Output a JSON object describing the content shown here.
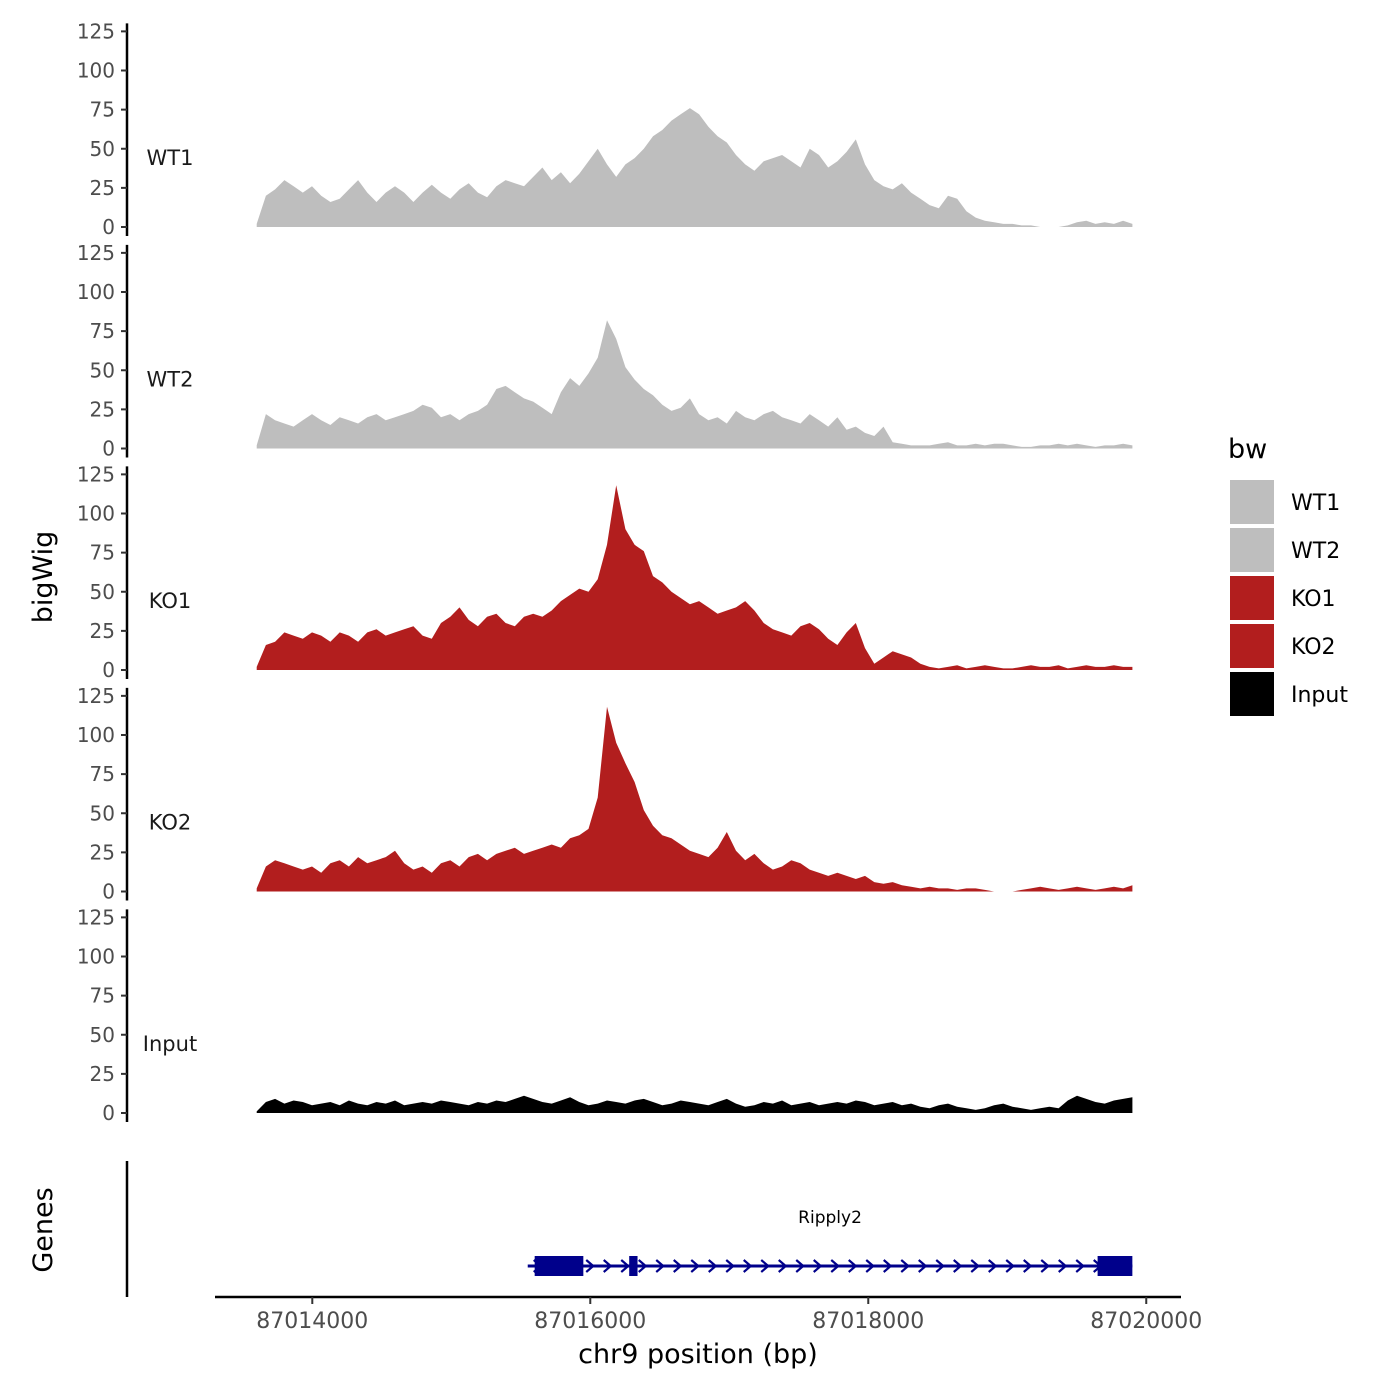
{
  "chart_data": {
    "type": "area",
    "ylabel": "bigWig",
    "xlabel": "chr9 position (bp)",
    "x_range": [
      87013600,
      87019900
    ],
    "xlim": [
      87013300,
      87020250
    ],
    "x_ticks": [
      87014000,
      87016000,
      87018000,
      87020000
    ],
    "x_tick_labels": [
      "87014000",
      "87016000",
      "87018000",
      "87020000"
    ],
    "ylim": [
      0,
      125
    ],
    "y_ticks": [
      0,
      25,
      50,
      75,
      100,
      125
    ],
    "y_tick_labels": [
      "0",
      "25",
      "50",
      "75",
      "100",
      "125"
    ],
    "legend": {
      "title": "bw",
      "position": "right",
      "items": [
        {
          "label": "WT1",
          "color": "#BEBEBE"
        },
        {
          "label": "WT2",
          "color": "#BEBEBE"
        },
        {
          "label": "KO1",
          "color": "#B21E1E"
        },
        {
          "label": "KO2",
          "color": "#B21E1E"
        },
        {
          "label": "Input",
          "color": "#000000"
        }
      ]
    },
    "series": [
      {
        "name": "WT1",
        "color": "#BEBEBE",
        "values": [
          2,
          20,
          24,
          30,
          26,
          22,
          26,
          20,
          16,
          18,
          24,
          30,
          22,
          16,
          22,
          26,
          22,
          16,
          22,
          27,
          22,
          18,
          24,
          28,
          22,
          19,
          26,
          30,
          28,
          26,
          32,
          38,
          30,
          35,
          28,
          34,
          42,
          50,
          40,
          32,
          40,
          44,
          50,
          58,
          62,
          68,
          72,
          76,
          72,
          64,
          58,
          54,
          46,
          40,
          36,
          42,
          44,
          46,
          42,
          38,
          50,
          46,
          38,
          42,
          48,
          56,
          40,
          30,
          26,
          24,
          28,
          22,
          18,
          14,
          12,
          20,
          18,
          10,
          6,
          4,
          3,
          2,
          2,
          1,
          1,
          0,
          0,
          0,
          1,
          3,
          4,
          2,
          3,
          2,
          4,
          2
        ]
      },
      {
        "name": "WT2",
        "color": "#BEBEBE",
        "values": [
          2,
          22,
          18,
          16,
          14,
          18,
          22,
          18,
          15,
          20,
          18,
          16,
          20,
          22,
          18,
          20,
          22,
          24,
          28,
          26,
          20,
          22,
          18,
          22,
          24,
          28,
          38,
          40,
          36,
          32,
          30,
          26,
          22,
          36,
          45,
          40,
          48,
          58,
          82,
          70,
          52,
          44,
          38,
          34,
          28,
          24,
          26,
          32,
          22,
          18,
          20,
          16,
          24,
          20,
          18,
          22,
          24,
          20,
          18,
          16,
          22,
          18,
          14,
          20,
          12,
          14,
          10,
          8,
          14,
          4,
          3,
          2,
          2,
          2,
          3,
          4,
          2,
          2,
          3,
          2,
          3,
          3,
          2,
          1,
          1,
          2,
          2,
          3,
          2,
          3,
          2,
          1,
          2,
          2,
          3,
          2
        ]
      },
      {
        "name": "KO1",
        "color": "#B21E1E",
        "values": [
          2,
          16,
          18,
          24,
          22,
          20,
          24,
          22,
          18,
          24,
          22,
          18,
          24,
          26,
          22,
          24,
          26,
          28,
          22,
          20,
          30,
          34,
          40,
          32,
          28,
          34,
          36,
          30,
          28,
          34,
          36,
          34,
          38,
          44,
          48,
          52,
          50,
          58,
          80,
          118,
          90,
          80,
          76,
          60,
          56,
          50,
          46,
          42,
          44,
          40,
          36,
          38,
          40,
          44,
          38,
          30,
          26,
          24,
          22,
          28,
          30,
          26,
          20,
          16,
          24,
          30,
          14,
          4,
          8,
          12,
          10,
          8,
          4,
          2,
          1,
          2,
          3,
          1,
          2,
          3,
          2,
          1,
          1,
          2,
          3,
          2,
          2,
          3,
          1,
          2,
          3,
          2,
          2,
          3,
          2,
          2
        ]
      },
      {
        "name": "KO2",
        "color": "#B21E1E",
        "values": [
          2,
          16,
          20,
          18,
          16,
          14,
          16,
          12,
          18,
          20,
          16,
          22,
          18,
          20,
          22,
          26,
          18,
          14,
          16,
          12,
          18,
          20,
          16,
          22,
          24,
          20,
          24,
          26,
          28,
          24,
          26,
          28,
          30,
          28,
          34,
          36,
          40,
          60,
          118,
          95,
          82,
          70,
          52,
          42,
          36,
          34,
          30,
          26,
          24,
          22,
          28,
          38,
          26,
          20,
          24,
          18,
          14,
          16,
          20,
          18,
          14,
          12,
          10,
          12,
          10,
          8,
          10,
          6,
          5,
          6,
          4,
          3,
          2,
          3,
          2,
          2,
          1,
          2,
          2,
          1,
          0,
          0,
          0,
          1,
          2,
          3,
          2,
          1,
          2,
          3,
          2,
          1,
          2,
          3,
          2,
          4
        ]
      },
      {
        "name": "Input",
        "color": "#000000",
        "values": [
          1,
          7,
          9,
          6,
          8,
          7,
          5,
          6,
          7,
          5,
          8,
          6,
          5,
          7,
          6,
          8,
          5,
          6,
          7,
          6,
          8,
          7,
          6,
          5,
          7,
          6,
          8,
          7,
          9,
          11,
          9,
          7,
          6,
          8,
          10,
          7,
          5,
          6,
          8,
          7,
          6,
          8,
          9,
          7,
          5,
          6,
          8,
          7,
          6,
          5,
          7,
          9,
          6,
          4,
          5,
          7,
          6,
          8,
          5,
          6,
          7,
          5,
          6,
          7,
          6,
          8,
          7,
          5,
          6,
          7,
          5,
          6,
          4,
          3,
          5,
          6,
          4,
          3,
          2,
          3,
          5,
          6,
          4,
          3,
          2,
          3,
          4,
          3,
          8,
          11,
          9,
          7,
          6,
          8,
          9,
          10
        ]
      }
    ],
    "genes_panel": {
      "ylabel": "Genes",
      "genes": [
        {
          "name": "Ripply2",
          "color": "#00008B",
          "start": 87015550,
          "end": 87019900,
          "strand": "+",
          "exons": [
            [
              87015600,
              87015950
            ],
            [
              87016280,
              87016340
            ],
            [
              87019650,
              87019900
            ]
          ]
        }
      ]
    }
  }
}
